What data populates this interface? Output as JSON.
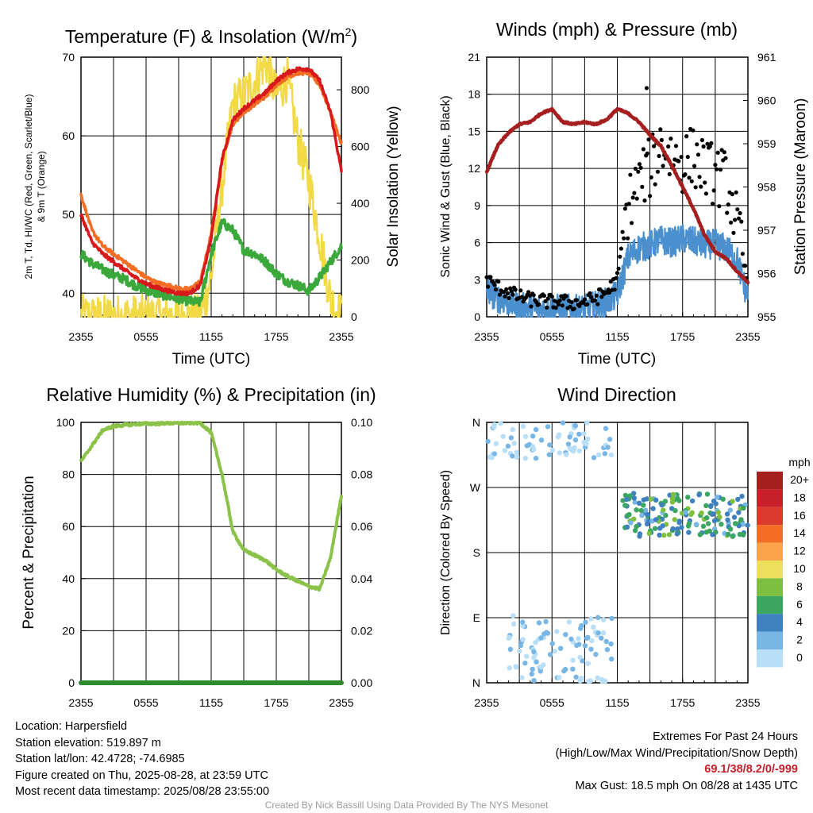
{
  "chart_data": [
    {
      "type": "line",
      "title": "Temperature (F) & Insolation (W/m²)",
      "title_main": "Temperature (F) & Insolation (W/m",
      "title_sup": "2",
      "title_end": ")",
      "xlabel": "Time (UTC)",
      "ylabel_line1": "2m T, Td, HI/WC (Red, Green, Scarlet/Blue)",
      "ylabel_line2": "& 9m T (Orange)",
      "ylabel_right": "Solar Insolation (Yellow)",
      "x_ticks": [
        "2355",
        "0555",
        "1155",
        "1755",
        "2355"
      ],
      "ylim": [
        37,
        70
      ],
      "yticks": [
        40,
        50,
        60,
        70
      ],
      "ylim_right": [
        0,
        915
      ],
      "yticks_right": [
        0,
        200,
        400,
        600,
        800
      ],
      "hours": [
        0,
        1,
        2,
        3,
        4,
        5,
        6,
        7,
        8,
        9,
        10,
        11,
        12,
        13,
        14,
        15,
        16,
        17,
        18,
        19,
        20,
        21,
        22,
        23,
        24
      ],
      "series": [
        {
          "name": "2m T",
          "color": "#d7191c",
          "values": [
            50,
            46.5,
            45,
            44,
            43,
            42,
            41.2,
            40.7,
            40.3,
            40,
            40,
            41,
            47,
            57,
            62,
            63.5,
            64.5,
            65.5,
            67,
            68,
            68.5,
            68.5,
            67,
            63,
            55.5
          ]
        },
        {
          "name": "9m T",
          "color": "#f46d25",
          "values": [
            52.5,
            48,
            46,
            45,
            44,
            43,
            42,
            41.3,
            41,
            40.6,
            40.5,
            41.5,
            47.5,
            57,
            61.5,
            63,
            64,
            65,
            66.5,
            67.5,
            68,
            68,
            66.5,
            63,
            59
          ]
        },
        {
          "name": "Td",
          "color": "#3aa83a",
          "values": [
            45,
            43.8,
            43,
            42.3,
            41.8,
            41,
            40.4,
            40,
            39.6,
            39.3,
            39,
            38.8,
            45,
            49,
            48,
            45.5,
            45,
            44,
            42.5,
            41.5,
            41,
            40.3,
            42,
            44,
            46
          ]
        },
        {
          "name": "Solar Insolation",
          "color": "#f2da46",
          "axis": "right",
          "values": [
            0,
            0,
            0,
            0,
            0,
            0,
            0,
            0,
            0,
            0,
            0,
            0,
            140,
            460,
            750,
            780,
            830,
            900,
            780,
            840,
            620,
            480,
            280,
            60,
            0
          ]
        }
      ]
    },
    {
      "type": "line",
      "title": "Winds (mph) & Pressure (mb)",
      "xlabel": "Time (UTC)",
      "ylabel": "Sonic Wind & Gust (Blue, Black)",
      "ylabel_right": "Station Pressure (Maroon)",
      "x_ticks": [
        "2355",
        "0555",
        "1155",
        "1755",
        "2355"
      ],
      "ylim": [
        0,
        21
      ],
      "yticks": [
        0,
        3,
        6,
        9,
        12,
        15,
        18,
        21
      ],
      "ylim_right": [
        955,
        961
      ],
      "yticks_right": [
        955,
        956,
        957,
        958,
        959,
        960,
        961
      ],
      "hours": [
        0,
        1,
        2,
        3,
        4,
        5,
        6,
        7,
        8,
        9,
        10,
        11,
        12,
        13,
        14,
        15,
        16,
        17,
        18,
        19,
        20,
        21,
        22,
        23,
        24
      ],
      "series": [
        {
          "name": "Sonic Wind",
          "color": "#4a90cf",
          "values": [
            2.2,
            1.5,
            1.2,
            0.8,
            0.7,
            0.6,
            0.6,
            0.7,
            0.6,
            0.6,
            0.9,
            1.2,
            1.8,
            4.8,
            5.6,
            5.8,
            6.2,
            6,
            6.3,
            6.1,
            5.8,
            5.9,
            5.5,
            4.6,
            1.5
          ]
        },
        {
          "name": "Gust",
          "color": "#000000",
          "values": [
            3,
            2.4,
            2,
            1.6,
            1.4,
            1.3,
            1.2,
            1.2,
            1.1,
            1.2,
            1.5,
            2,
            3,
            9,
            11,
            12,
            14,
            13,
            12.5,
            13,
            12,
            11.5,
            11,
            7.5,
            2.5
          ]
        },
        {
          "name": "Station Pressure",
          "color": "#a51f1f",
          "axis": "right",
          "values": [
            958.35,
            958.95,
            959.25,
            959.45,
            959.5,
            959.7,
            959.8,
            959.5,
            959.45,
            959.5,
            959.45,
            959.55,
            959.8,
            959.7,
            959.5,
            959.2,
            958.95,
            958.5,
            958.0,
            957.5,
            956.9,
            956.5,
            956.35,
            956.05,
            955.8
          ]
        }
      ],
      "annotations": {
        "max_gust_point": [
          14.7,
          18.5
        ]
      }
    },
    {
      "type": "line",
      "title": "Relative Humidity (%) & Precipitation (in)",
      "ylabel": "Percent & Precipitation",
      "x_ticks": [
        "2355",
        "0555",
        "1155",
        "1755",
        "2355"
      ],
      "ylim": [
        0,
        100
      ],
      "yticks": [
        0,
        20,
        40,
        60,
        80,
        100
      ],
      "ylim_right": [
        0,
        0.1
      ],
      "yticks_right": [
        "0.00",
        "0.02",
        "0.04",
        "0.06",
        "0.08",
        "0.10"
      ],
      "hours": [
        0,
        1,
        2,
        3,
        4,
        5,
        6,
        7,
        8,
        9,
        10,
        11,
        12,
        13,
        14,
        15,
        16,
        17,
        18,
        19,
        20,
        21,
        22,
        23,
        24
      ],
      "series": [
        {
          "name": "Relative Humidity",
          "color": "#8bc34a",
          "values": [
            85,
            91,
            97,
            98.5,
            99,
            99.3,
            99.5,
            99.5,
            99.7,
            99.7,
            99.8,
            99.8,
            96,
            80,
            58,
            51,
            49,
            47,
            43.5,
            41,
            39,
            37,
            36,
            48,
            72
          ]
        },
        {
          "name": "Precipitation",
          "color": "#2e8b2e",
          "axis": "right",
          "values": [
            0,
            0,
            0,
            0,
            0,
            0,
            0,
            0,
            0,
            0,
            0,
            0,
            0,
            0,
            0,
            0,
            0,
            0,
            0,
            0,
            0,
            0,
            0,
            0,
            0
          ]
        }
      ]
    },
    {
      "type": "scatter",
      "title": "Wind Direction",
      "ylabel": "Direction (Colored By Speed)",
      "x_ticks": [
        "2355",
        "0555",
        "1155",
        "1755",
        "2355"
      ],
      "y_ticks": [
        "N",
        "E",
        "S",
        "W",
        "N"
      ],
      "ylim": [
        0,
        360
      ],
      "colorbar": {
        "unit": "mph",
        "labels": [
          "20+",
          "18",
          "16",
          "14",
          "12",
          "10",
          "8",
          "6",
          "4",
          "2",
          "0"
        ],
        "colors": [
          "#a51f1f",
          "#c8202a",
          "#dd3a2e",
          "#f46d25",
          "#fba44a",
          "#ece05a",
          "#7fbf3f",
          "#3aa660",
          "#3f80bf",
          "#78b6e6",
          "#b9def7"
        ]
      },
      "clusters": [
        {
          "label": "night_north",
          "hour_range": [
            0,
            11.5
          ],
          "dir_range": [
            310,
            360
          ],
          "speed": 1
        },
        {
          "label": "night_east",
          "hour_range": [
            2,
            11.5
          ],
          "dir_range": [
            0,
            95
          ],
          "speed": 1
        },
        {
          "label": "afternoon_sw",
          "hour_range": [
            12.5,
            24
          ],
          "dir_range": [
            200,
            260
          ],
          "speed": 5
        }
      ]
    }
  ],
  "footer": {
    "location": "Location: Harpersfield",
    "elevation": "Station elevation: 519.897 m",
    "latlon": "Station lat/lon: 42.4728; -74.6985",
    "created": "Figure created on Thu, 2025-08-28, at 23:59 UTC",
    "recent": "Most recent data timestamp: 2025/08/28 23:55:00",
    "extremes_title": "Extremes For Past 24 Hours",
    "extremes_legend": "(High/Low/Max Wind/Precipitation/Snow Depth)",
    "extremes_values": "69.1/38/8.2/0/-999",
    "max_gust": "Max Gust: 18.5 mph On 08/28 at 1435 UTC",
    "credit": "Created By Nick Bassill Using Data Provided By The NYS Mesonet"
  }
}
